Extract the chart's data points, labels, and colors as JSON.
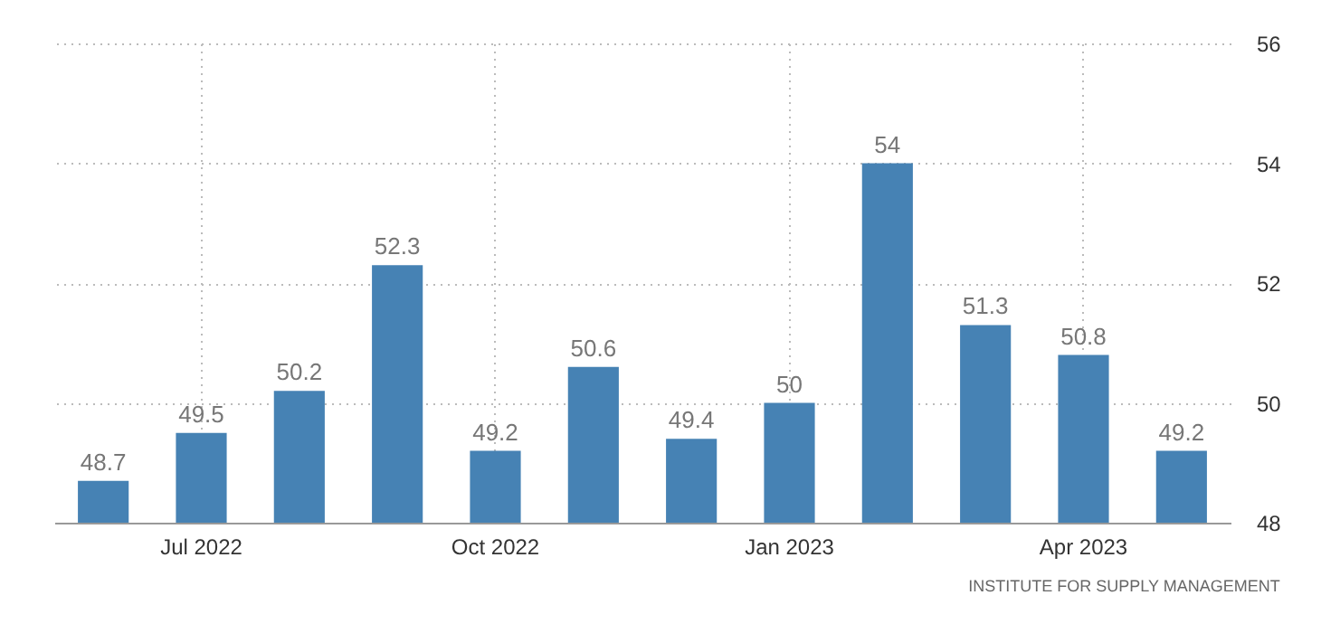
{
  "chart_data": {
    "type": "bar",
    "categories": [
      null,
      "Jul 2022",
      null,
      null,
      "Oct 2022",
      null,
      null,
      "Jan 2023",
      null,
      null,
      "Apr 2023",
      null
    ],
    "values": [
      48.7,
      49.5,
      50.2,
      52.3,
      49.2,
      50.6,
      49.4,
      50,
      54,
      51.3,
      50.8,
      49.2
    ],
    "color": "#4682b4",
    "ylim": [
      48,
      56
    ],
    "yticks": [
      48,
      50,
      52,
      54,
      56
    ],
    "grid": true,
    "data_labels": true,
    "annotations": [
      "INSTITUTE FOR SUPPLY MANAGEMENT"
    ]
  }
}
